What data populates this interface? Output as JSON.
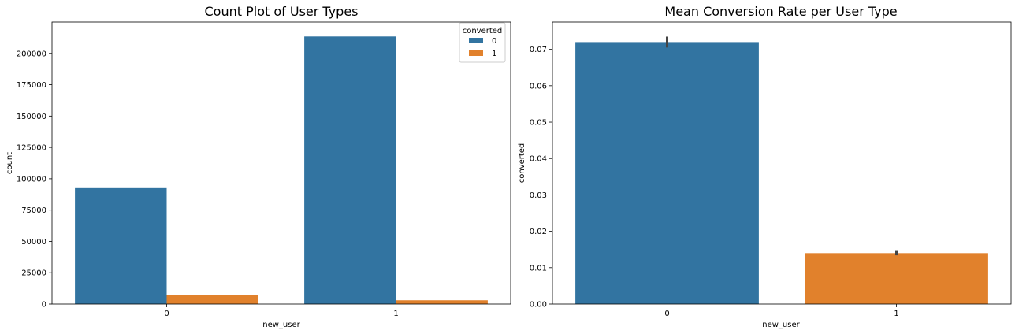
{
  "colors": {
    "c0": "#3274a1",
    "c1": "#e1812c",
    "err": "#444444"
  },
  "chart_data": [
    {
      "type": "bar",
      "title": "Count Plot of User Types",
      "xlabel": "new_user",
      "ylabel": "count",
      "categories": [
        "0",
        "1"
      ],
      "ylim": [
        0,
        225000
      ],
      "yticks": [
        0,
        25000,
        50000,
        75000,
        100000,
        125000,
        150000,
        175000,
        200000
      ],
      "ytick_labels": [
        "0",
        "25000",
        "50000",
        "75000",
        "100000",
        "125000",
        "150000",
        "175000",
        "200000"
      ],
      "legend": {
        "title": "converted",
        "position": "top-right",
        "entries": [
          "0",
          "1"
        ]
      },
      "series": [
        {
          "name": "0",
          "values": [
            92500,
            213500
          ]
        },
        {
          "name": "1",
          "values": [
            7500,
            3000
          ]
        }
      ]
    },
    {
      "type": "bar",
      "title": "Mean Conversion Rate per User Type",
      "xlabel": "new_user",
      "ylabel": "converted",
      "categories": [
        "0",
        "1"
      ],
      "ylim": [
        0,
        0.0775
      ],
      "yticks": [
        0,
        0.01,
        0.02,
        0.03,
        0.04,
        0.05,
        0.06,
        0.07
      ],
      "ytick_labels": [
        "0.00",
        "0.01",
        "0.02",
        "0.03",
        "0.04",
        "0.05",
        "0.06",
        "0.07"
      ],
      "values": [
        0.072,
        0.014
      ],
      "error": [
        [
          0.0705,
          0.0735
        ],
        [
          0.0134,
          0.0146
        ]
      ]
    }
  ]
}
